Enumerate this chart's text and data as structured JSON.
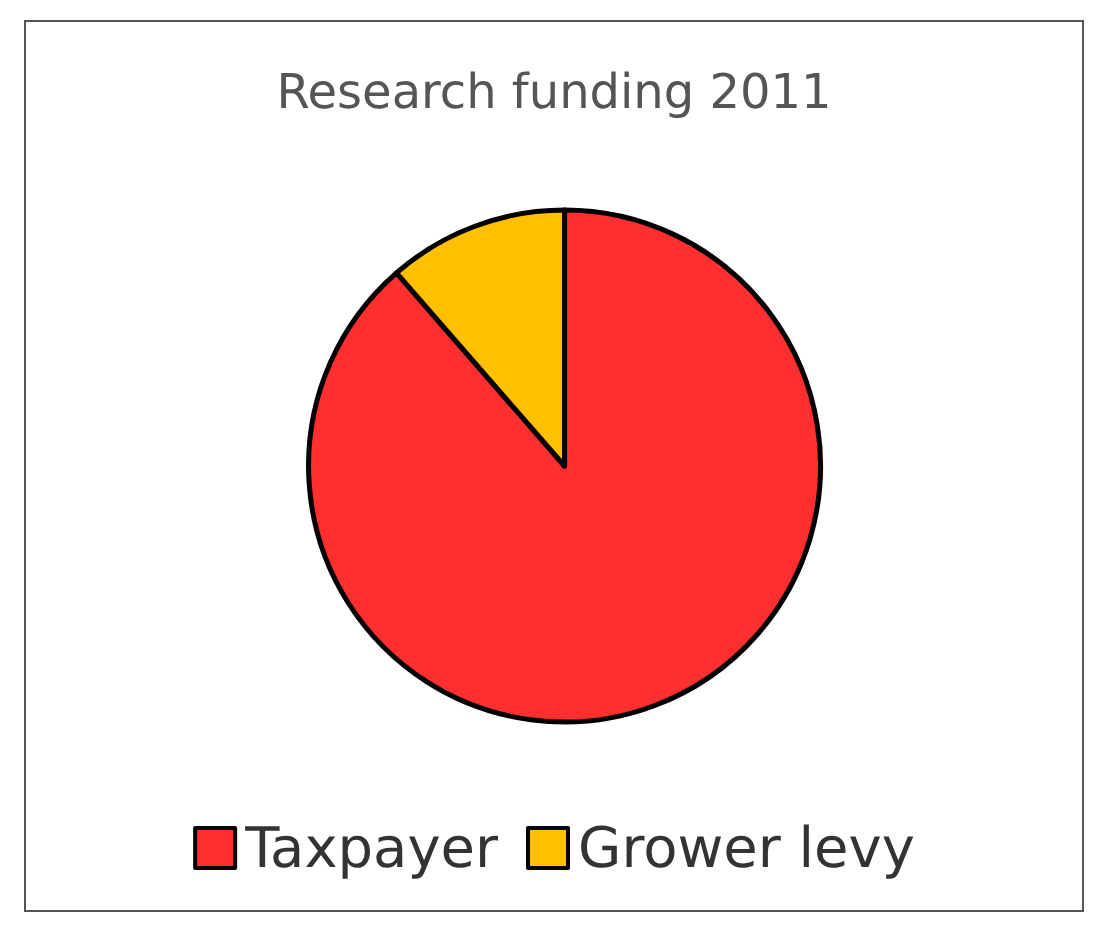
{
  "chart_data": {
    "type": "pie",
    "title": "Research funding 2011",
    "categories": [
      "Taxpayer",
      "Grower levy"
    ],
    "values": [
      88.6,
      11.4
    ],
    "colors": [
      "#ff2f2f",
      "#ffc000"
    ],
    "legend": "bottom"
  }
}
